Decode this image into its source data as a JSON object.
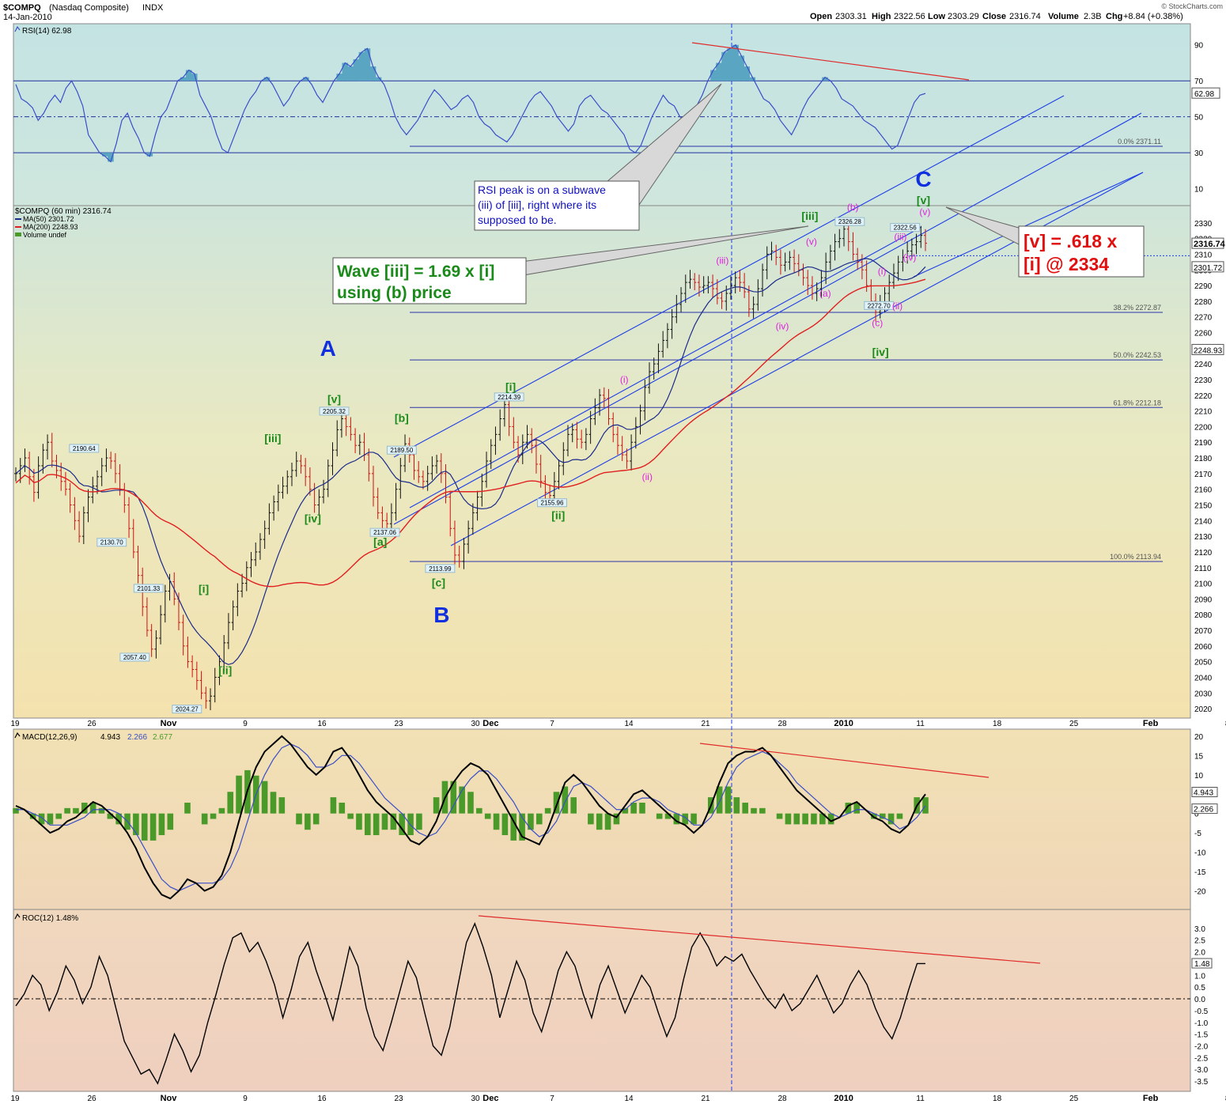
{
  "header": {
    "symbol": "$COMPQ",
    "name": "(Nasdaq Composite)",
    "exchange": "INDX",
    "date": "14-Jan-2010",
    "open_label": "Open",
    "open": "2303.31",
    "high_label": "High",
    "high": "2322.56",
    "low_label": "Low",
    "low": "2303.29",
    "close_label": "Close",
    "close": "2316.74",
    "volume_label": "Volume",
    "volume": "2.3B",
    "chg_label": "Chg",
    "chg": "+8.84 (+0.38%)",
    "watermark": "© StockCharts.com"
  },
  "colors": {
    "rsi": "#3a4fc8",
    "ma50": "#1b2a8a",
    "ma200": "#e02020",
    "channel": "#1e3ee6",
    "fib": "#2b34a8",
    "trend": "#e02a2a",
    "green": "#1a8a1a",
    "magenta": "#e020e0",
    "up": "#111111",
    "down": "#cc1111"
  },
  "x_labels": [
    {
      "label": "19",
      "slot": 0
    },
    {
      "label": "26",
      "slot": 5
    },
    {
      "label": "Nov",
      "slot": 10
    },
    {
      "label": "9",
      "slot": 15
    },
    {
      "label": "16",
      "slot": 20
    },
    {
      "label": "23",
      "slot": 25
    },
    {
      "label": "30",
      "slot": 30
    },
    {
      "label": "Dec",
      "slot": 31
    },
    {
      "label": "7",
      "slot": 35
    },
    {
      "label": "14",
      "slot": 40
    },
    {
      "label": "21",
      "slot": 45
    },
    {
      "label": "28",
      "slot": 50
    },
    {
      "label": "2010",
      "slot": 54
    },
    {
      "label": "11",
      "slot": 59
    },
    {
      "label": "18",
      "slot": 64
    },
    {
      "label": "25",
      "slot": 69
    },
    {
      "label": "Feb",
      "slot": 74
    },
    {
      "label": "8",
      "slot": 79
    }
  ],
  "rsi_panel": {
    "title": "RSI(14) 62.98",
    "last": "62.98",
    "ticks": [
      90,
      70,
      50,
      30,
      10
    ],
    "ylim": [
      5,
      100
    ],
    "levels": [
      70,
      30
    ],
    "midline": 50,
    "values": [
      68,
      60,
      58,
      55,
      48,
      52,
      58,
      62,
      58,
      66,
      70,
      64,
      56,
      40,
      35,
      30,
      28,
      25,
      35,
      48,
      52,
      44,
      38,
      30,
      28,
      40,
      50,
      54,
      62,
      70,
      72,
      76,
      74,
      62,
      56,
      50,
      40,
      32,
      30,
      38,
      46,
      54,
      60,
      64,
      70,
      72,
      68,
      62,
      56,
      60,
      66,
      70,
      72,
      68,
      62,
      58,
      64,
      70,
      74,
      80,
      78,
      82,
      86,
      88,
      78,
      72,
      68,
      60,
      50,
      44,
      40,
      44,
      48,
      54,
      60,
      65,
      62,
      58,
      54,
      56,
      60,
      62,
      58,
      50,
      46,
      44,
      40,
      38,
      36,
      40,
      46,
      52,
      58,
      62,
      64,
      60,
      56,
      50,
      46,
      42,
      46,
      56,
      60,
      62,
      58,
      54,
      52,
      48,
      44,
      40,
      32,
      30,
      34,
      42,
      50,
      56,
      62,
      58,
      56,
      50,
      48,
      52,
      56,
      62,
      70,
      76,
      80,
      86,
      88,
      90,
      84,
      78,
      72,
      66,
      60,
      58,
      54,
      48,
      44,
      40,
      46,
      54,
      60,
      64,
      68,
      72,
      70,
      66,
      60,
      58,
      56,
      52,
      48,
      46,
      44,
      40,
      36,
      32,
      34,
      42,
      50,
      58,
      62,
      63
    ]
  },
  "price_panel": {
    "title": "$COMPQ (60 min) 2316.74",
    "legend_ma50": "MA(50) 2301.72",
    "legend_ma200": "MA(200) 2248.93",
    "legend_vol": "Volume undef",
    "ylim": [
      2015,
      2340
    ],
    "ticks": [
      2330,
      2320,
      2310,
      2300,
      2290,
      2280,
      2270,
      2260,
      2250,
      2240,
      2230,
      2220,
      2210,
      2200,
      2190,
      2180,
      2170,
      2160,
      2150,
      2140,
      2130,
      2120,
      2110,
      2100,
      2090,
      2080,
      2070,
      2060,
      2050,
      2040,
      2030,
      2020
    ],
    "right_labels": [
      {
        "value": 2316.74,
        "text": "2316.74",
        "bold": true
      },
      {
        "value": 2301.72,
        "text": "2301.72",
        "bold": false
      },
      {
        "value": 2248.93,
        "text": "2248.93",
        "bold": false
      }
    ],
    "close_series": [
      2170,
      2175,
      2180,
      2168,
      2158,
      2175,
      2185,
      2190,
      2178,
      2172,
      2165,
      2160,
      2150,
      2140,
      2130,
      2145,
      2155,
      2162,
      2168,
      2175,
      2180,
      2178,
      2170,
      2160,
      2150,
      2135,
      2120,
      2105,
      2085,
      2070,
      2058,
      2065,
      2080,
      2095,
      2101,
      2090,
      2075,
      2060,
      2050,
      2045,
      2038,
      2030,
      2025,
      2028,
      2040,
      2050,
      2062,
      2075,
      2085,
      2095,
      2100,
      2110,
      2115,
      2120,
      2128,
      2135,
      2145,
      2152,
      2158,
      2162,
      2168,
      2172,
      2178,
      2175,
      2168,
      2160,
      2150,
      2155,
      2160,
      2175,
      2185,
      2198,
      2205,
      2200,
      2195,
      2188,
      2190,
      2182,
      2170,
      2155,
      2145,
      2140,
      2138,
      2145,
      2160,
      2175,
      2189,
      2182,
      2172,
      2168,
      2165,
      2170,
      2175,
      2178,
      2170,
      2155,
      2135,
      2118,
      2114,
      2125,
      2135,
      2145,
      2155,
      2165,
      2178,
      2188,
      2195,
      2205,
      2214,
      2200,
      2190,
      2182,
      2190,
      2195,
      2188,
      2176,
      2165,
      2158,
      2156,
      2165,
      2175,
      2185,
      2195,
      2198,
      2192,
      2190,
      2195,
      2205,
      2212,
      2220,
      2218,
      2205,
      2195,
      2188,
      2182,
      2178,
      2190,
      2200,
      2210,
      2225,
      2235,
      2240,
      2248,
      2255,
      2262,
      2270,
      2278,
      2285,
      2292,
      2294,
      2292,
      2289,
      2290,
      2292,
      2288,
      2282,
      2280,
      2285,
      2290,
      2295,
      2292,
      2286,
      2275,
      2278,
      2288,
      2300,
      2310,
      2312,
      2308,
      2303,
      2305,
      2308,
      2304,
      2300,
      2295,
      2290,
      2285,
      2288,
      2295,
      2305,
      2312,
      2318,
      2320,
      2326,
      2318,
      2310,
      2305,
      2300,
      2290,
      2280,
      2273,
      2278,
      2285,
      2292,
      2298,
      2305,
      2308,
      2312,
      2316,
      2318,
      2322,
      2317
    ]
  },
  "fib_levels": [
    {
      "value": 2371.11,
      "text": "0.0% 2371.11",
      "panel": "rsi"
    },
    {
      "value": 2272.87,
      "text": "38.2% 2272.87",
      "panel": "price"
    },
    {
      "value": 2242.53,
      "text": "50.0% 2242.53",
      "panel": "price"
    },
    {
      "value": 2212.18,
      "text": "61.8% 2212.18",
      "panel": "price"
    },
    {
      "value": 2113.94,
      "text": "100.0% 2113.94",
      "panel": "price"
    }
  ],
  "price_tags": [
    {
      "text": "2190.64",
      "slot": 4.5,
      "value": 2190.64
    },
    {
      "text": "2130.70",
      "slot": 6.3,
      "value": 2130.7
    },
    {
      "text": "2101.33",
      "slot": 8.7,
      "value": 2101.33
    },
    {
      "text": "2057.40",
      "slot": 7.8,
      "value": 2057.4
    },
    {
      "text": "2024.27",
      "slot": 11.2,
      "value": 2024.27
    },
    {
      "text": "2205.32",
      "slot": 20.8,
      "value": 2205.32
    },
    {
      "text": "2189.50",
      "slot": 25.2,
      "value": 2189.5
    },
    {
      "text": "2137.06",
      "slot": 24.1,
      "value": 2137.06
    },
    {
      "text": "2113.99",
      "slot": 27.7,
      "value": 2113.99
    },
    {
      "text": "2214.39",
      "slot": 32.2,
      "value": 2214.39
    },
    {
      "text": "2155.96",
      "slot": 35.0,
      "value": 2155.96
    },
    {
      "text": "2326.28",
      "slot": 54.4,
      "value": 2326.28
    },
    {
      "text": "2322.56",
      "slot": 58.0,
      "value": 2322.56
    },
    {
      "text": "2272.70",
      "slot": 56.3,
      "value": 2272.7
    }
  ],
  "wave_labels": [
    {
      "text": "A",
      "style": "big",
      "slot": 20.4,
      "value": 2245
    },
    {
      "text": "B",
      "style": "big",
      "slot": 27.8,
      "value": 2075
    },
    {
      "text": "C",
      "style": "big",
      "slot": 59.2,
      "value": 2353
    },
    {
      "text": "[v]",
      "style": "green",
      "slot": 20.8,
      "value": 2215
    },
    {
      "text": "[iii]",
      "style": "green",
      "slot": 16.8,
      "value": 2190
    },
    {
      "text": "[iv]",
      "style": "green",
      "slot": 19.4,
      "value": 2139
    },
    {
      "text": "[i]",
      "style": "green",
      "slot": 12.3,
      "value": 2094
    },
    {
      "text": "[ii]",
      "style": "green",
      "slot": 13.7,
      "value": 2042
    },
    {
      "text": "[b]",
      "style": "green",
      "slot": 25.2,
      "value": 2203
    },
    {
      "text": "[a]",
      "style": "green",
      "slot": 23.8,
      "value": 2124
    },
    {
      "text": "[c]",
      "style": "green",
      "slot": 27.6,
      "value": 2098
    },
    {
      "text": "[i]",
      "style": "green",
      "slot": 32.3,
      "value": 2223
    },
    {
      "text": "[ii]",
      "style": "green",
      "slot": 35.4,
      "value": 2141
    },
    {
      "text": "[iii]",
      "style": "green",
      "slot": 51.8,
      "value": 2332
    },
    {
      "text": "[iv]",
      "style": "green",
      "slot": 56.4,
      "value": 2245
    },
    {
      "text": "[v]",
      "style": "green",
      "slot": 59.2,
      "value": 2342
    },
    {
      "text": "(i)",
      "style": "mag",
      "slot": 39.7,
      "value": 2228
    },
    {
      "text": "(ii)",
      "style": "mag",
      "slot": 41.2,
      "value": 2166
    },
    {
      "text": "(iii)",
      "style": "mag",
      "slot": 46.1,
      "value": 2304
    },
    {
      "text": "(iv)",
      "style": "mag",
      "slot": 50.0,
      "value": 2262
    },
    {
      "text": "(v)",
      "style": "mag",
      "slot": 51.9,
      "value": 2316
    },
    {
      "text": "(a)",
      "style": "mag",
      "slot": 52.8,
      "value": 2283
    },
    {
      "text": "(b)",
      "style": "mag",
      "slot": 54.6,
      "value": 2338
    },
    {
      "text": "(c)",
      "style": "mag",
      "slot": 56.2,
      "value": 2264
    },
    {
      "text": "(i)",
      "style": "mag",
      "slot": 56.5,
      "value": 2297
    },
    {
      "text": "(ii)",
      "style": "mag",
      "slot": 57.5,
      "value": 2275
    },
    {
      "text": "(iii)",
      "style": "mag",
      "slot": 57.7,
      "value": 2319
    },
    {
      "text": "(iv)",
      "style": "mag",
      "slot": 58.3,
      "value": 2306
    },
    {
      "text": "(v)",
      "style": "mag",
      "slot": 59.3,
      "value": 2335
    }
  ],
  "annotations": {
    "rsi_note": [
      "RSI peak is on a subwave",
      "(iii) of [iii], right where its",
      "supposed to be."
    ],
    "wave_note": [
      "Wave [iii] = 1.69 x [i]",
      "using (b) price"
    ],
    "target_note": [
      "[v] = .618 x",
      "[i] @ 2334"
    ]
  },
  "macd_panel": {
    "title_prefix": "MACD(12,26,9)",
    "v1": "4.943",
    "v2": "2.266",
    "v3": "2.677",
    "ticks": [
      20,
      15,
      10,
      5,
      0,
      -5,
      -10,
      -15,
      -20
    ],
    "ylim": [
      -24,
      21
    ],
    "right_labels": [
      {
        "value": 4.943,
        "text": "4.943"
      },
      {
        "value": 2.266,
        "text": "2.266"
      }
    ],
    "macd": [
      2,
      1,
      -1,
      -3,
      -5,
      -4,
      -2,
      -1,
      1,
      3,
      2,
      0,
      -2,
      -5,
      -9,
      -14,
      -18,
      -21,
      -22,
      -20,
      -17,
      -18,
      -20,
      -19,
      -16,
      -10,
      -2,
      6,
      12,
      16,
      18,
      20,
      18,
      15,
      12,
      10,
      12,
      16,
      17,
      14,
      10,
      6,
      3,
      1,
      -1,
      -4,
      -7,
      -8,
      -6,
      -2,
      4,
      8,
      11,
      13,
      12,
      10,
      6,
      2,
      -2,
      -6,
      -7,
      -8,
      -4,
      2,
      8,
      10,
      8,
      5,
      2,
      0,
      -1,
      2,
      5,
      6,
      4,
      2,
      0,
      -2,
      -3,
      -5,
      -3,
      2,
      8,
      13,
      15,
      16,
      16,
      17,
      15,
      12,
      9,
      6,
      4,
      2,
      0,
      -2,
      -1,
      2,
      3,
      1,
      -1,
      -2,
      -4,
      -5,
      -3,
      2,
      5
    ],
    "signal": [
      1,
      1,
      0,
      -1,
      -3,
      -3,
      -3,
      -2,
      -1,
      1,
      1,
      1,
      0,
      -2,
      -5,
      -9,
      -13,
      -17,
      -19,
      -20,
      -19,
      -18,
      -18,
      -18,
      -17,
      -14,
      -9,
      -2,
      5,
      10,
      14,
      17,
      18,
      17,
      15,
      12,
      12,
      13,
      15,
      15,
      13,
      10,
      7,
      4,
      2,
      0,
      -3,
      -5,
      -6,
      -5,
      -2,
      2,
      6,
      9,
      11,
      11,
      9,
      6,
      3,
      -1,
      -4,
      -6,
      -5,
      -2,
      3,
      7,
      8,
      7,
      5,
      3,
      1,
      1,
      3,
      4,
      4,
      3,
      1,
      0,
      -1,
      -3,
      -3,
      -1,
      3,
      8,
      12,
      14,
      15,
      16,
      15,
      13,
      11,
      8,
      6,
      4,
      2,
      0,
      -1,
      0,
      1,
      1,
      0,
      -1,
      -2,
      -4,
      -3,
      -1,
      2
    ]
  },
  "roc_panel": {
    "title": "ROC(12) 1.48%",
    "last": "1.48",
    "ticks": [
      3.0,
      2.5,
      2.0,
      1.5,
      1.0,
      0.5,
      0.0,
      -0.5,
      -1.0,
      -1.5,
      -2.0,
      -2.5,
      -3.0,
      -3.5
    ],
    "tick_text": [
      "3.0",
      "2.5",
      "2.0",
      "1.5",
      "1.0",
      "0.5",
      "0.0",
      "-0.5",
      "-1.0",
      "-1.5",
      "-2.0",
      "-2.5",
      "-3.0",
      "-3.5"
    ],
    "ylim": [
      -3.8,
      3.6
    ],
    "values": [
      -0.3,
      0.2,
      1.0,
      0.6,
      -0.5,
      0.3,
      1.4,
      0.8,
      -0.2,
      0.5,
      1.8,
      1.0,
      -0.4,
      -1.8,
      -2.5,
      -3.2,
      -3.0,
      -3.6,
      -2.6,
      -1.5,
      -2.2,
      -3.1,
      -2.4,
      -1.0,
      0.2,
      1.5,
      2.6,
      2.8,
      2.0,
      2.4,
      1.6,
      0.6,
      -0.8,
      0.4,
      1.8,
      2.4,
      1.2,
      0.2,
      -0.9,
      0.6,
      2.2,
      1.4,
      -0.4,
      -1.6,
      -2.2,
      -1.0,
      0.3,
      1.6,
      0.9,
      -0.6,
      -2.0,
      -2.4,
      -1.2,
      0.6,
      2.4,
      3.2,
      2.2,
      1.0,
      -0.8,
      0.4,
      1.6,
      0.8,
      -0.6,
      -1.4,
      -0.2,
      1.2,
      2.0,
      1.4,
      0.2,
      -0.8,
      0.6,
      1.4,
      0.4,
      -0.6,
      0.2,
      1.0,
      0.5,
      -0.6,
      -1.6,
      -0.8,
      0.8,
      2.2,
      2.8,
      2.2,
      1.4,
      1.8,
      1.6,
      1.9,
      1.2,
      0.6,
      0.0,
      -0.4,
      0.2,
      -0.5,
      -0.2,
      0.4,
      1.0,
      0.2,
      -0.6,
      -0.2,
      0.6,
      1.2,
      0.6,
      -0.4,
      -1.2,
      -1.7,
      -0.8,
      0.4,
      1.5,
      1.5
    ]
  }
}
